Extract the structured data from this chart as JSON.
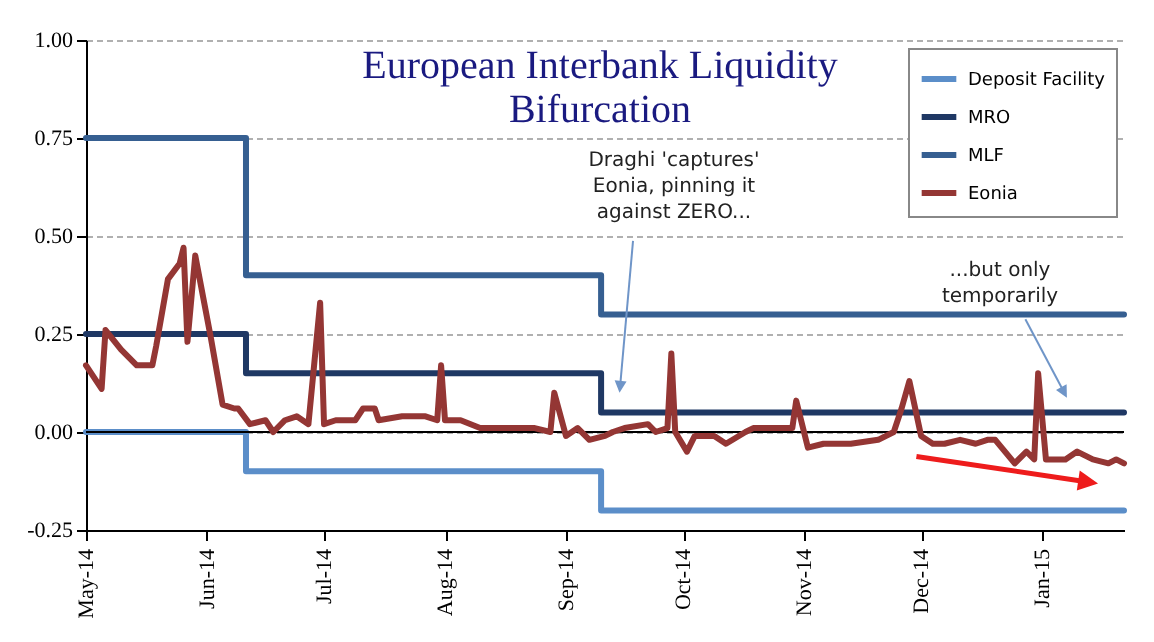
{
  "chart_data": {
    "type": "line",
    "title": "European Interbank Liquidity Bifurcation",
    "annotations": [
      "Draghi 'captures' Eonia, pinning it against ZERO...",
      "...but only temporarily"
    ],
    "x": [
      "2014-05-01",
      "2014-05-05",
      "2014-05-06",
      "2014-05-10",
      "2014-05-14",
      "2014-05-18",
      "2014-05-19",
      "2014-05-22",
      "2014-05-25",
      "2014-05-26",
      "2014-05-27",
      "2014-05-29",
      "2014-06-02",
      "2014-06-05",
      "2014-06-08",
      "2014-06-09",
      "2014-06-12",
      "2014-06-16",
      "2014-06-18",
      "2014-06-21",
      "2014-06-24",
      "2014-06-27",
      "2014-06-30",
      "2014-07-01",
      "2014-07-04",
      "2014-07-09",
      "2014-07-11",
      "2014-07-14",
      "2014-07-15",
      "2014-07-21",
      "2014-07-27",
      "2014-07-30",
      "2014-07-31",
      "2014-08-01",
      "2014-08-05",
      "2014-08-10",
      "2014-08-17",
      "2014-08-24",
      "2014-08-28",
      "2014-08-29",
      "2014-09-01",
      "2014-09-04",
      "2014-09-07",
      "2014-09-11",
      "2014-09-13",
      "2014-09-16",
      "2014-09-22",
      "2014-09-24",
      "2014-09-27",
      "2014-09-28",
      "2014-09-29",
      "2014-10-02",
      "2014-10-04",
      "2014-10-09",
      "2014-10-12",
      "2014-10-17",
      "2014-10-19",
      "2014-10-24",
      "2014-10-29",
      "2014-10-30",
      "2014-11-02",
      "2014-11-06",
      "2014-11-13",
      "2014-11-20",
      "2014-11-24",
      "2014-11-26",
      "2014-11-28",
      "2014-12-01",
      "2014-12-04",
      "2014-12-07",
      "2014-12-11",
      "2014-12-15",
      "2014-12-18",
      "2014-12-20",
      "2014-12-25",
      "2014-12-28",
      "2014-12-30",
      "2014-12-31",
      "2015-01-02",
      "2015-01-07",
      "2015-01-10",
      "2015-01-14",
      "2015-01-18",
      "2015-01-20",
      "2015-01-22"
    ],
    "series": [
      {
        "name": "Deposit Facility",
        "type": "step",
        "color": "#5b8ec9",
        "x": [
          "2014-05-01",
          "2014-06-11",
          "2014-09-10",
          "2015-01-22"
        ],
        "values": [
          0,
          -0.1,
          -0.2,
          -0.2
        ]
      },
      {
        "name": "MRO",
        "type": "step",
        "color": "#1f3864",
        "x": [
          "2014-05-01",
          "2014-06-11",
          "2014-09-10",
          "2015-01-22"
        ],
        "values": [
          0.25,
          0.15,
          0.05,
          0.05
        ]
      },
      {
        "name": "MLF",
        "type": "step",
        "color": "#365f91",
        "x": [
          "2014-05-01",
          "2014-06-11",
          "2014-09-10",
          "2015-01-22"
        ],
        "values": [
          0.75,
          0.4,
          0.3,
          0.3
        ]
      },
      {
        "name": "Eonia",
        "type": "line",
        "color": "#943634",
        "values": [
          0.17,
          0.11,
          0.26,
          0.21,
          0.17,
          0.17,
          0.22,
          0.39,
          0.43,
          0.47,
          0.23,
          0.45,
          0.24,
          0.07,
          0.06,
          0.06,
          0.02,
          0.03,
          0.0,
          0.03,
          0.04,
          0.02,
          0.33,
          0.02,
          0.03,
          0.03,
          0.06,
          0.06,
          0.03,
          0.04,
          0.04,
          0.03,
          0.17,
          0.03,
          0.03,
          0.01,
          0.01,
          0.01,
          0.0,
          0.1,
          -0.01,
          0.01,
          -0.02,
          -0.01,
          0.0,
          0.01,
          0.02,
          0.0,
          0.01,
          0.2,
          0.0,
          -0.05,
          -0.01,
          -0.01,
          -0.03,
          0.0,
          0.01,
          0.01,
          0.01,
          0.08,
          -0.04,
          -0.03,
          -0.03,
          -0.02,
          0.0,
          0.06,
          0.13,
          -0.01,
          -0.03,
          -0.03,
          -0.02,
          -0.03,
          -0.02,
          -0.02,
          -0.08,
          -0.05,
          -0.07,
          0.15,
          -0.07,
          -0.07,
          -0.05,
          -0.07,
          -0.08,
          -0.07,
          -0.08
        ]
      }
    ],
    "xlim": [
      "2014-05-01",
      "2015-01-22"
    ],
    "xticks": [
      {
        "value": "2014-05-01",
        "label": "May-14"
      },
      {
        "value": "2014-06-01",
        "label": "Jun-14"
      },
      {
        "value": "2014-07-01",
        "label": "Jul-14"
      },
      {
        "value": "2014-08-01",
        "label": "Aug-14"
      },
      {
        "value": "2014-09-01",
        "label": "Sep-14"
      },
      {
        "value": "2014-10-01",
        "label": "Oct-14"
      },
      {
        "value": "2014-11-01",
        "label": "Nov-14"
      },
      {
        "value": "2014-12-01",
        "label": "Dec-14"
      },
      {
        "value": "2015-01-01",
        "label": "Jan-15"
      }
    ],
    "ylim": [
      -0.25,
      1
    ],
    "yticks": [
      -0.25,
      {
        "value": 0,
        "label": "0.00"
      },
      0.25,
      {
        "value": 0.5,
        "label": "0.50"
      },
      0.75,
      {
        "value": 1,
        "label": "1.00"
      }
    ],
    "ref_lines": [
      {
        "axis": "y",
        "value": 0,
        "color": "#000000"
      }
    ],
    "grid": "y",
    "legend": "top right"
  }
}
